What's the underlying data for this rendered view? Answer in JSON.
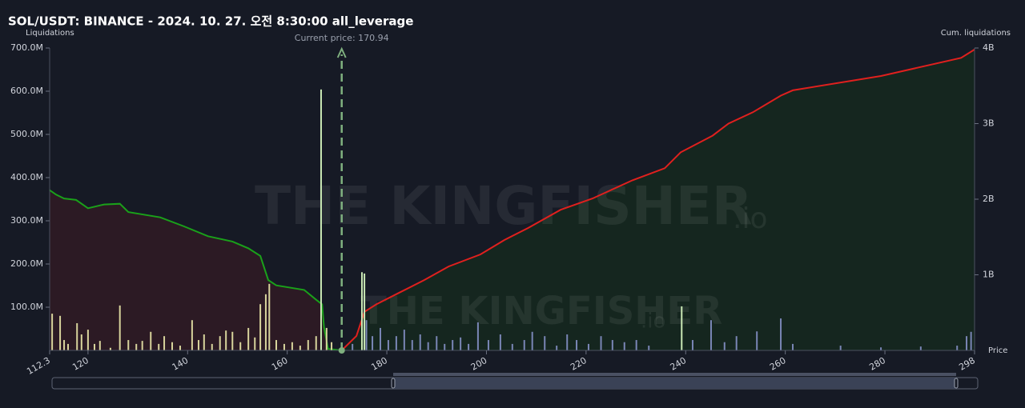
{
  "chart_data": {
    "type": "liquidation",
    "title": "SOL/USDT: BINANCE - 2024. 10. 27. 오전 8:30:00 all_leverage",
    "y_label": "Liquidations",
    "y2_label": "Cum. liquidations",
    "x_label": "Price",
    "watermark": [
      "THE KINGFISHER",
      ".io"
    ],
    "current_price": {
      "value": 170.94,
      "label": "Current price: 170.94"
    },
    "xlim": [
      112.3,
      298
    ],
    "xticks": [
      112.3,
      120,
      140,
      160,
      180,
      200,
      220,
      240,
      260,
      280,
      298
    ],
    "ylim": [
      0,
      700000000
    ],
    "yticks": [
      {
        "value": 100000000,
        "label": "100.0M"
      },
      {
        "value": 200000000,
        "label": "200.0M"
      },
      {
        "value": 300000000,
        "label": "300.0M"
      },
      {
        "value": 400000000,
        "label": "400.0M"
      },
      {
        "value": 500000000,
        "label": "500.0M"
      },
      {
        "value": 600000000,
        "label": "600.0M"
      },
      {
        "value": 700000000,
        "label": "700.0M"
      }
    ],
    "y2lim": [
      0,
      4000000000
    ],
    "y2ticks": [
      {
        "value": 1000000000,
        "label": "1B"
      },
      {
        "value": 2000000000,
        "label": "2B"
      },
      {
        "value": 3000000000,
        "label": "3B"
      },
      {
        "value": 4000000000,
        "label": "4B"
      }
    ],
    "series": [
      {
        "type": "area",
        "axis": "y2",
        "color": "#1aa11a",
        "fill": "#2c1a24",
        "x": [
          112.3,
          113.6,
          115.2,
          117.6,
          120.0,
          123.2,
          126.4,
          128.1,
          134.5,
          139.3,
          144.1,
          149.0,
          152.2,
          154.6,
          156.2,
          157.8,
          163.4,
          165.8,
          167.0,
          167.4,
          168.2,
          170.94
        ],
        "values": [
          2120000000,
          2060000000,
          2010000000,
          1990000000,
          1880000000,
          1930000000,
          1940000000,
          1830000000,
          1760000000,
          1640000000,
          1510000000,
          1440000000,
          1350000000,
          1250000000,
          930000000,
          860000000,
          800000000,
          670000000,
          610000000,
          300000000,
          20000000,
          0
        ]
      },
      {
        "type": "area",
        "axis": "y2",
        "color": "#e0201e",
        "fill": "#15261f",
        "x": [
          170.94,
          173.9,
          175.5,
          177.9,
          182.7,
          187.5,
          192.4,
          198.8,
          203.6,
          208.4,
          214.9,
          221.3,
          229.3,
          235.8,
          239.0,
          245.4,
          248.6,
          253.5,
          259.1,
          261.5,
          279.2,
          295.3,
          298.0
        ],
        "values": [
          0,
          190000000,
          510000000,
          610000000,
          770000000,
          930000000,
          1110000000,
          1270000000,
          1460000000,
          1620000000,
          1860000000,
          2010000000,
          2250000000,
          2410000000,
          2620000000,
          2840000000,
          3000000000,
          3150000000,
          3370000000,
          3440000000,
          3630000000,
          3870000000,
          3980000000
        ]
      },
      {
        "type": "bar",
        "color": "#d8d49c",
        "x": [
          112.8,
          114.4,
          115.2,
          116.0,
          117.8,
          118.7,
          120.0,
          121.3,
          122.4,
          124.5,
          126.4,
          128.1,
          129.7,
          130.9,
          132.6,
          134.2,
          135.3,
          136.9,
          138.5,
          140.9,
          142.2,
          143.3,
          144.9,
          146.5,
          147.7,
          149.0,
          150.6,
          152.2,
          153.5,
          154.6,
          155.7,
          156.4,
          157.8,
          159.4,
          161.0,
          162.6,
          164.2,
          165.8,
          167.9,
          168.9
        ],
        "values": [
          85000000,
          80000000,
          24000000,
          15000000,
          63000000,
          37000000,
          48000000,
          15000000,
          22000000,
          6000000,
          104000000,
          24000000,
          15000000,
          22000000,
          43000000,
          15000000,
          33000000,
          19000000,
          11000000,
          70000000,
          24000000,
          37000000,
          15000000,
          33000000,
          46000000,
          43000000,
          19000000,
          52000000,
          30000000,
          107000000,
          130000000,
          154000000,
          24000000,
          15000000,
          19000000,
          11000000,
          24000000,
          33000000,
          52000000,
          19000000
        ]
      },
      {
        "type": "bar",
        "color": "#c9e8b4",
        "x": [
          166.8,
          175.0,
          175.5,
          239.2
        ],
        "values": [
          604000000,
          181000000,
          178000000,
          102000000
        ]
      },
      {
        "type": "bar",
        "color": "#7a86b6",
        "x": [
          173.1,
          175.9,
          177.1,
          178.7,
          180.3,
          181.9,
          183.5,
          185.1,
          186.7,
          188.3,
          190.0,
          191.6,
          193.2,
          194.8,
          196.4,
          198.3,
          200.4,
          202.8,
          205.2,
          207.6,
          209.2,
          211.7,
          214.1,
          216.2,
          218.1,
          220.5,
          223.0,
          225.3,
          227.7,
          230.1,
          232.6,
          241.4,
          245.1,
          247.8,
          250.2,
          254.3,
          259.1,
          261.5,
          271.1,
          279.2,
          287.2,
          294.5,
          296.4,
          297.3
        ],
        "values": [
          15000000,
          70000000,
          33000000,
          52000000,
          24000000,
          33000000,
          48000000,
          24000000,
          37000000,
          19000000,
          33000000,
          15000000,
          24000000,
          30000000,
          15000000,
          65000000,
          24000000,
          37000000,
          15000000,
          24000000,
          43000000,
          33000000,
          11000000,
          37000000,
          24000000,
          15000000,
          33000000,
          24000000,
          19000000,
          24000000,
          11000000,
          24000000,
          70000000,
          19000000,
          33000000,
          44000000,
          74000000,
          15000000,
          11000000,
          7000000,
          9000000,
          11000000,
          33000000,
          43000000
        ]
      }
    ]
  }
}
